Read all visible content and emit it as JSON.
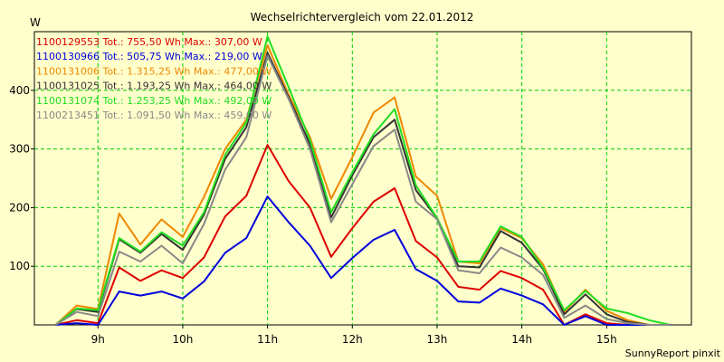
{
  "chart_data": {
    "type": "line",
    "title": "Wechselrichtervergleich vom 22.01.2012",
    "ylabel": "W",
    "xlabel": "",
    "footer": "SunnyReport pinxit",
    "xlim": [
      8.25,
      16.0
    ],
    "ylim": [
      0,
      500
    ],
    "grid": true,
    "legend_position": "top-left",
    "x_ticks": [
      {
        "value": 9,
        "label": "9h"
      },
      {
        "value": 10,
        "label": "10h"
      },
      {
        "value": 11,
        "label": "11h"
      },
      {
        "value": 12,
        "label": "12h"
      },
      {
        "value": 13,
        "label": "13h"
      },
      {
        "value": 14,
        "label": "14h"
      },
      {
        "value": 15,
        "label": "15h"
      }
    ],
    "y_ticks": [
      {
        "value": 100,
        "label": "100"
      },
      {
        "value": 200,
        "label": "200"
      },
      {
        "value": 300,
        "label": "300"
      },
      {
        "value": 400,
        "label": "400"
      }
    ],
    "x": [
      8.5,
      8.75,
      9.0,
      9.25,
      9.5,
      9.75,
      10.0,
      10.25,
      10.5,
      10.75,
      11.0,
      11.25,
      11.5,
      11.75,
      12.0,
      12.25,
      12.5,
      12.75,
      13.0,
      13.25,
      13.5,
      13.75,
      14.0,
      14.25,
      14.5,
      14.75,
      15.0,
      15.25,
      15.5,
      15.75
    ],
    "series": [
      {
        "name": "1100129553",
        "legend": "1100129553 Tot.: 755,50 Wh Max.: 307,00 W",
        "color": "#dd0000",
        "values": [
          0,
          8,
          3,
          98,
          75,
          93,
          80,
          115,
          185,
          220,
          307,
          245,
          200,
          116,
          165,
          210,
          233,
          143,
          115,
          65,
          60,
          92,
          80,
          60,
          0,
          18,
          3,
          0,
          0,
          0
        ]
      },
      {
        "name": "1100130966",
        "legend": "1100130966 Tot.: 505,75 Wh Max.: 219,00 W",
        "color": "#0000dd",
        "values": [
          0,
          3,
          0,
          57,
          50,
          57,
          45,
          74,
          123,
          148,
          219,
          175,
          135,
          80,
          114,
          145,
          162,
          95,
          75,
          40,
          38,
          62,
          50,
          35,
          0,
          15,
          0,
          0,
          0,
          0
        ]
      },
      {
        "name": "1100131006",
        "legend": "1100131006 Tot.: 1.315,25 Wh Max.: 477,00 W",
        "color": "#ee8800",
        "values": [
          0,
          33,
          27,
          190,
          137,
          180,
          150,
          218,
          300,
          350,
          477,
          392,
          320,
          215,
          286,
          362,
          388,
          253,
          220,
          108,
          105,
          165,
          148,
          103,
          22,
          60,
          24,
          8,
          0,
          0
        ]
      },
      {
        "name": "1100131025",
        "legend": "1100131025 Tot.: 1.193,25 Wh Max.: 464,00 W",
        "color": "#333333",
        "values": [
          0,
          27,
          22,
          146,
          123,
          155,
          128,
          188,
          283,
          337,
          464,
          388,
          308,
          183,
          255,
          320,
          350,
          230,
          182,
          100,
          98,
          160,
          140,
          95,
          18,
          52,
          18,
          5,
          0,
          0
        ]
      },
      {
        "name": "1100131074",
        "legend": "1100131074 Tot.: 1.253,25 Wh Max.: 492,00 W",
        "color": "#22dd22",
        "values": [
          0,
          28,
          25,
          148,
          125,
          158,
          135,
          192,
          290,
          345,
          492,
          405,
          315,
          192,
          260,
          325,
          368,
          238,
          182,
          108,
          108,
          168,
          150,
          97,
          25,
          58,
          28,
          20,
          8,
          0
        ]
      },
      {
        "name": "1100213451",
        "legend": "1100213451 Tot.: 1.091,50 Wh Max.: 459,00 W",
        "color": "#888888",
        "values": [
          0,
          22,
          15,
          125,
          108,
          135,
          105,
          172,
          265,
          320,
          459,
          385,
          300,
          175,
          240,
          305,
          333,
          210,
          180,
          93,
          88,
          132,
          115,
          85,
          12,
          33,
          10,
          3,
          0,
          0
        ]
      }
    ]
  }
}
